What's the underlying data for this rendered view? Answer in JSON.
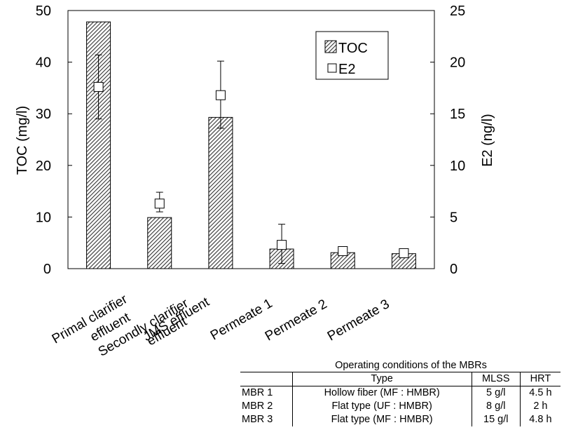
{
  "chart_data": {
    "type": "bar",
    "categories": [
      [
        "Primal clarifier",
        "effluent"
      ],
      [
        "Secondly clarifier",
        "effluent"
      ],
      [
        "JMS effluent"
      ],
      [
        "Permeate 1"
      ],
      [
        "Permeate 2"
      ],
      [
        "Permeate 3"
      ]
    ],
    "series": [
      {
        "name": "TOC",
        "axis": "left",
        "kind": "bar",
        "pattern": "diagonal-hatch",
        "values": [
          47.8,
          9.9,
          29.3,
          3.8,
          3.1,
          2.9
        ]
      },
      {
        "name": "E2",
        "axis": "right",
        "kind": "marker",
        "marker": "open-square",
        "values": [
          17.6,
          6.3,
          16.8,
          2.3,
          1.7,
          1.5
        ],
        "error_high": [
          20.7,
          7.4,
          20.1,
          4.3,
          1.8,
          1.6
        ],
        "error_low": [
          14.5,
          5.5,
          13.6,
          0.5,
          1.7,
          1.5
        ]
      }
    ],
    "ylabel": "TOC (mg/l)",
    "y2label": "E2 (ng/l)",
    "ylim": [
      0,
      50
    ],
    "y2lim": [
      0,
      25
    ],
    "yticks": [
      0,
      10,
      20,
      30,
      40,
      50
    ],
    "y2ticks": [
      0,
      5,
      10,
      15,
      20,
      25
    ],
    "legend_position": "top-right",
    "grid": false
  },
  "ops_table": {
    "caption": "Operating conditions of the MBRs",
    "headers": [
      "",
      "Type",
      "MLSS",
      "HRT"
    ],
    "rows": [
      [
        "MBR 1",
        "Hollow fiber (MF : HMBR)",
        "5 g/l",
        "4.5 h"
      ],
      [
        "MBR 2",
        "Flat type (UF : HMBR)",
        "8 g/l",
        "2 h"
      ],
      [
        "MBR 3",
        "Flat type (MF : HMBR)",
        "15 g/l",
        "4.8 h"
      ]
    ]
  }
}
